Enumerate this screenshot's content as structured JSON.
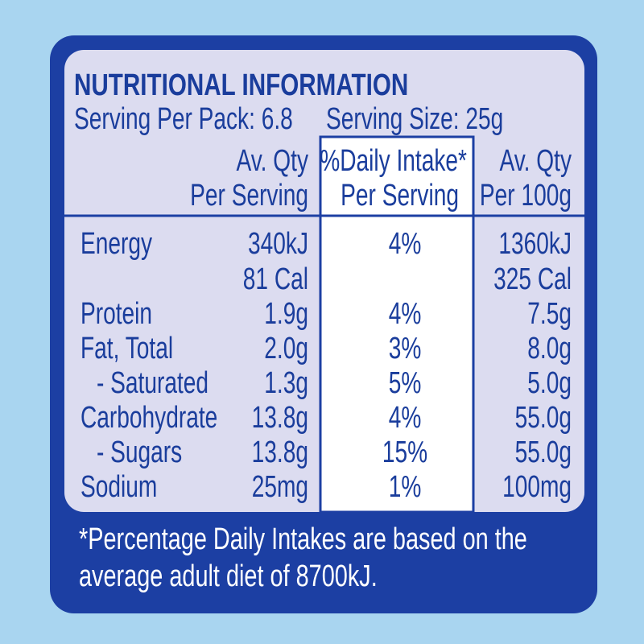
{
  "header": {
    "title": "NUTRITIONAL INFORMATION",
    "serving_per_pack": "Serving Per Pack: 6.8",
    "serving_size": "Serving Size: 25g"
  },
  "table": {
    "columns": [
      [
        "Av. Qty",
        "Per Serving"
      ],
      [
        "%Daily Intake*",
        "Per Serving"
      ],
      [
        "Av. Qty",
        "Per 100g"
      ]
    ],
    "rows": [
      {
        "label": "Energy",
        "per_serving": [
          "340kJ",
          "81 Cal"
        ],
        "daily_intake": "4%",
        "per_100g": [
          "1360kJ",
          "325 Cal"
        ]
      },
      {
        "label": "Protein",
        "per_serving": [
          "1.9g"
        ],
        "daily_intake": "4%",
        "per_100g": [
          "7.5g"
        ]
      },
      {
        "label": "Fat, Total",
        "per_serving": [
          "2.0g"
        ],
        "daily_intake": "3%",
        "per_100g": [
          "8.0g"
        ]
      },
      {
        "label": "- Saturated",
        "per_serving": [
          "1.3g"
        ],
        "daily_intake": "5%",
        "per_100g": [
          "5.0g"
        ]
      },
      {
        "label": "Carbohydrate",
        "per_serving": [
          "13.8g"
        ],
        "daily_intake": "4%",
        "per_100g": [
          "55.0g"
        ]
      },
      {
        "label": "- Sugars",
        "per_serving": [
          "13.8g"
        ],
        "daily_intake": "15%",
        "per_100g": [
          "55.0g"
        ]
      },
      {
        "label": "Sodium",
        "per_serving": [
          "25mg"
        ],
        "daily_intake": "1%",
        "per_100g": [
          "100mg"
        ]
      }
    ]
  },
  "footnote": [
    "*Percentage Daily Intakes are based on the",
    "average adult diet of 8700kJ."
  ]
}
